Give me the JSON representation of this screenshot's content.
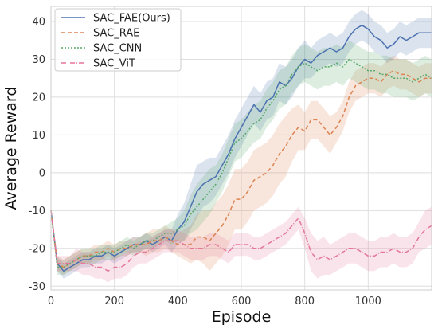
{
  "chart_data": {
    "type": "line",
    "title": "",
    "xlabel": "Episode",
    "ylabel": "Average Reward",
    "xlim": [
      0,
      1200
    ],
    "ylim": [
      -31,
      44
    ],
    "xticks": [
      0,
      200,
      400,
      600,
      800,
      1000
    ],
    "yticks": [
      -30,
      -20,
      -10,
      0,
      10,
      20,
      30,
      40
    ],
    "grid": true,
    "legend_position": "top-left",
    "series": [
      {
        "name": "SAC_FAE(Ours)",
        "color": "#4C72B0",
        "dash": "solid",
        "x": [
          0,
          20,
          40,
          60,
          80,
          100,
          120,
          140,
          160,
          180,
          200,
          220,
          240,
          260,
          280,
          300,
          320,
          340,
          360,
          380,
          400,
          420,
          440,
          460,
          480,
          500,
          520,
          540,
          560,
          580,
          600,
          620,
          640,
          660,
          680,
          700,
          720,
          740,
          760,
          780,
          800,
          820,
          840,
          860,
          880,
          900,
          920,
          940,
          960,
          980,
          1000,
          1020,
          1040,
          1060,
          1080,
          1100,
          1120,
          1140,
          1160,
          1180,
          1200
        ],
        "y": [
          -10,
          -24,
          -26,
          -25,
          -24,
          -23,
          -23,
          -22,
          -22,
          -21,
          -22,
          -21,
          -20,
          -19,
          -19,
          -18,
          -19,
          -18,
          -17,
          -18,
          -15,
          -13,
          -9,
          -5,
          -3,
          -2,
          -1,
          2,
          5,
          9,
          12,
          15,
          18,
          16,
          19,
          20,
          24,
          23,
          25,
          28,
          30,
          29,
          31,
          32,
          33,
          32,
          33,
          36,
          38,
          39,
          38,
          36,
          35,
          33,
          34,
          36,
          35,
          36,
          37,
          37,
          37
        ],
        "band": [
          0,
          2,
          2,
          2,
          2,
          2,
          2,
          2,
          2,
          2,
          2,
          2,
          2,
          2,
          2,
          2,
          2,
          2,
          2,
          3,
          4,
          5,
          6,
          7,
          6,
          6,
          5,
          5,
          5,
          5,
          5,
          5,
          5,
          5,
          5,
          5,
          5,
          5,
          5,
          5,
          5,
          4,
          4,
          4,
          4,
          4,
          4,
          4,
          4,
          4,
          4,
          4,
          4,
          4,
          4,
          4,
          4,
          4,
          4,
          4,
          4
        ]
      },
      {
        "name": "SAC_RAE",
        "color": "#DD8452",
        "dash": "5,3",
        "x": [
          0,
          20,
          40,
          60,
          80,
          100,
          120,
          140,
          160,
          180,
          200,
          220,
          240,
          260,
          280,
          300,
          320,
          340,
          360,
          380,
          400,
          420,
          440,
          460,
          480,
          500,
          520,
          540,
          560,
          580,
          600,
          620,
          640,
          660,
          680,
          700,
          720,
          740,
          760,
          780,
          800,
          820,
          840,
          860,
          880,
          900,
          920,
          940,
          960,
          980,
          1000,
          1020,
          1040,
          1060,
          1080,
          1100,
          1120,
          1140,
          1160,
          1180,
          1200
        ],
        "y": [
          -10,
          -24,
          -25,
          -24,
          -23,
          -22,
          -22,
          -21,
          -21,
          -20,
          -21,
          -20,
          -20,
          -19,
          -19,
          -19,
          -18,
          -18,
          -17,
          -18,
          -19,
          -19,
          -19,
          -17,
          -17,
          -18,
          -16,
          -14,
          -11,
          -7,
          -7,
          -5,
          -2,
          -1,
          0,
          2,
          5,
          7,
          10,
          12,
          11,
          14,
          14,
          12,
          10,
          12,
          15,
          20,
          23,
          24,
          25,
          25,
          24,
          26,
          27,
          26,
          26,
          25,
          24,
          25,
          25
        ],
        "band": [
          0,
          2,
          2,
          2,
          2,
          2,
          2,
          2,
          2,
          2,
          2,
          2,
          2,
          2,
          2,
          3,
          3,
          3,
          3,
          3,
          3,
          4,
          5,
          6,
          7,
          8,
          8,
          8,
          8,
          8,
          8,
          8,
          8,
          8,
          8,
          8,
          8,
          8,
          7,
          6,
          5,
          5,
          5,
          5,
          5,
          4,
          4,
          4,
          4,
          4,
          4,
          4,
          4,
          4,
          4,
          4,
          4,
          4,
          4,
          4,
          4
        ]
      },
      {
        "name": "SAC_CNN",
        "color": "#55A868",
        "dash": "2,2",
        "x": [
          0,
          20,
          40,
          60,
          80,
          100,
          120,
          140,
          160,
          180,
          200,
          220,
          240,
          260,
          280,
          300,
          320,
          340,
          360,
          380,
          400,
          420,
          440,
          460,
          480,
          500,
          520,
          540,
          560,
          580,
          600,
          620,
          640,
          660,
          680,
          700,
          720,
          740,
          760,
          780,
          800,
          820,
          840,
          860,
          880,
          900,
          920,
          940,
          960,
          980,
          1000,
          1020,
          1040,
          1060,
          1080,
          1100,
          1120,
          1140,
          1160,
          1180,
          1200
        ],
        "y": [
          -10,
          -25,
          -25,
          -24,
          -23,
          -22,
          -22,
          -22,
          -21,
          -21,
          -21,
          -20,
          -19,
          -20,
          -19,
          -18,
          -18,
          -17,
          -16,
          -16,
          -15,
          -14,
          -11,
          -9,
          -7,
          -5,
          -3,
          0,
          4,
          8,
          9,
          11,
          13,
          14,
          17,
          19,
          22,
          23,
          26,
          28,
          29,
          28,
          27,
          28,
          28,
          29,
          28,
          30,
          29,
          28,
          27,
          27,
          26,
          26,
          25,
          25,
          25,
          24,
          25,
          26,
          25
        ],
        "band": [
          0,
          2,
          2,
          2,
          2,
          2,
          2,
          2,
          2,
          2,
          2,
          2,
          2,
          2,
          2,
          2,
          2,
          2,
          2,
          3,
          3,
          4,
          5,
          6,
          6,
          6,
          5,
          5,
          5,
          5,
          5,
          5,
          5,
          5,
          5,
          5,
          5,
          5,
          5,
          5,
          5,
          5,
          5,
          5,
          5,
          5,
          5,
          5,
          5,
          5,
          5,
          5,
          5,
          5,
          5,
          5,
          5,
          5,
          5,
          5,
          5
        ]
      },
      {
        "name": "SAC_ViT",
        "color": "#E5779B",
        "dash": "6,2,1,2",
        "x": [
          0,
          20,
          40,
          60,
          80,
          100,
          120,
          140,
          160,
          180,
          200,
          220,
          240,
          260,
          280,
          300,
          320,
          340,
          360,
          380,
          400,
          420,
          440,
          460,
          480,
          500,
          520,
          540,
          560,
          580,
          600,
          620,
          640,
          660,
          680,
          700,
          720,
          740,
          760,
          780,
          800,
          820,
          840,
          860,
          880,
          900,
          920,
          940,
          960,
          980,
          1000,
          1020,
          1040,
          1060,
          1080,
          1100,
          1120,
          1140,
          1160,
          1180,
          1200
        ],
        "y": [
          -10,
          -24,
          -24,
          -24,
          -23,
          -24,
          -24,
          -25,
          -25,
          -26,
          -25,
          -25,
          -24,
          -22,
          -21,
          -21,
          -20,
          -19,
          -18,
          -18,
          -18,
          -19,
          -20,
          -20,
          -20,
          -19,
          -19,
          -20,
          -21,
          -19,
          -19,
          -19,
          -20,
          -20,
          -19,
          -18,
          -17,
          -16,
          -14,
          -12,
          -16,
          -21,
          -23,
          -22,
          -23,
          -22,
          -21,
          -20,
          -20,
          -21,
          -22,
          -22,
          -21,
          -21,
          -20,
          -21,
          -21,
          -20,
          -17,
          -15,
          -14
        ],
        "band": [
          0,
          2,
          2,
          2,
          3,
          3,
          3,
          3,
          3,
          3,
          3,
          3,
          3,
          3,
          3,
          3,
          3,
          3,
          3,
          3,
          3,
          3,
          3,
          3,
          3,
          3,
          3,
          3,
          3,
          3,
          3,
          3,
          3,
          3,
          3,
          3,
          3,
          3,
          3,
          3,
          4,
          5,
          5,
          5,
          4,
          4,
          4,
          4,
          4,
          4,
          4,
          4,
          4,
          4,
          4,
          4,
          4,
          4,
          4,
          5,
          5
        ]
      }
    ]
  }
}
